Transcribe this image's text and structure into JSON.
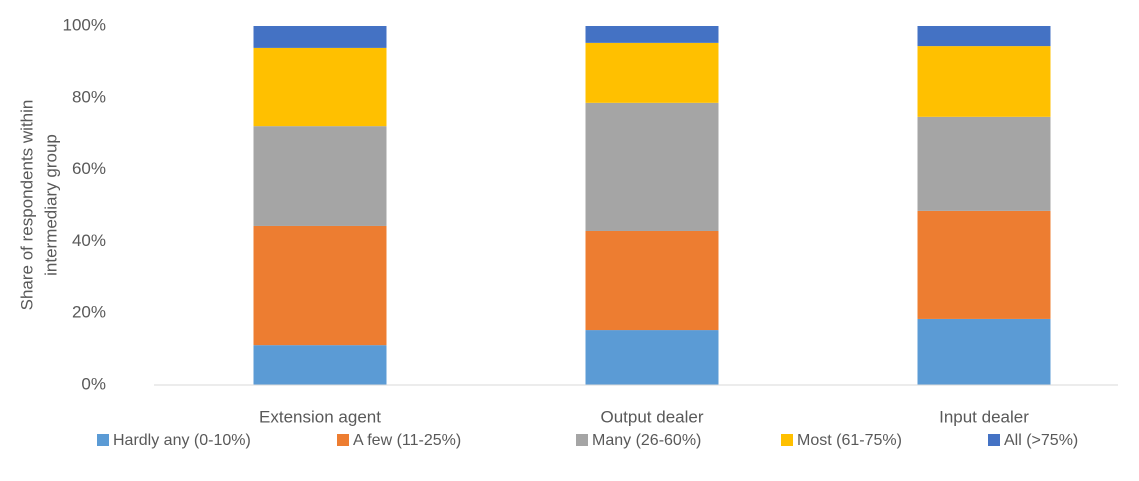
{
  "chart_data": {
    "type": "stacked_bar",
    "y_label": [
      "Share of respondents within",
      "intermediary group"
    ],
    "categories": [
      "Extension agent",
      "Output dealer",
      "Input dealer"
    ],
    "series": [
      {
        "name": "Hardly any (0-10%)",
        "color": "#5b9bd5",
        "values": [
          11.1,
          15.3,
          18.4
        ]
      },
      {
        "name": "A few (11-25%)",
        "color": "#ed7d31",
        "values": [
          33.2,
          27.6,
          30.1
        ]
      },
      {
        "name": "Many (26-60%)",
        "color": "#a5a5a5",
        "values": [
          27.8,
          35.7,
          26.2
        ]
      },
      {
        "name": "Most (61-75%)",
        "color": "#ffc000",
        "values": [
          21.8,
          16.7,
          19.7
        ]
      },
      {
        "name": "All  (>75%)",
        "color": "#4472c4",
        "values": [
          6.1,
          4.7,
          5.6
        ]
      }
    ],
    "ylim": [
      0,
      100
    ],
    "yticks": [
      {
        "value": 0,
        "label": "0%"
      },
      {
        "value": 20,
        "label": "20%"
      },
      {
        "value": 40,
        "label": "40%"
      },
      {
        "value": 60,
        "label": "60%"
      },
      {
        "value": 80,
        "label": "80%"
      },
      {
        "value": 100,
        "label": "100%"
      }
    ],
    "grid": false,
    "legend": "bottom"
  }
}
